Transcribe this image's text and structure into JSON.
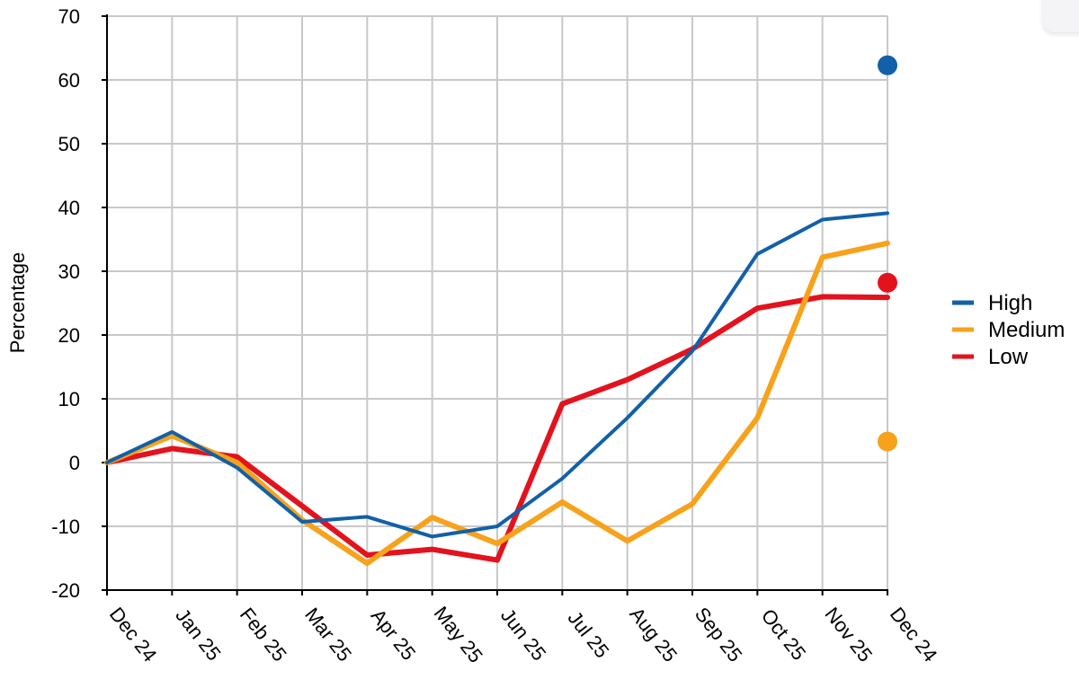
{
  "chart_data": {
    "type": "line",
    "title": "",
    "xlabel": "",
    "ylabel": "Percentage",
    "ylim": [
      -20,
      70
    ],
    "yticks": [
      -20,
      -10,
      0,
      10,
      20,
      30,
      40,
      50,
      60,
      70
    ],
    "categories": [
      "Dec 24",
      "Jan 25",
      "Feb 25",
      "Mar 25",
      "Apr 25",
      "May 25",
      "Jun 25",
      "Jul 25",
      "Aug 25",
      "Sep 25",
      "Oct 25",
      "Nov 25",
      "Dec 24"
    ],
    "grid": true,
    "legend_position": "right",
    "series": [
      {
        "name": "High",
        "color": "#1260a8",
        "values": [
          0,
          4.8,
          -0.8,
          -9.3,
          -8.5,
          -11.6,
          -10.0,
          -2.5,
          7.0,
          17.5,
          32.7,
          38.1,
          39.1
        ],
        "endpoint_marker": 62.3
      },
      {
        "name": "Medium",
        "color": "#f7a21b",
        "values": [
          0,
          4.2,
          0,
          -9.0,
          -15.8,
          -8.6,
          -12.7,
          -6.2,
          -12.3,
          -6.5,
          7.0,
          32.2,
          34.4
        ],
        "endpoint_marker": 3.3
      },
      {
        "name": "Low",
        "color": "#e3131e",
        "values": [
          0,
          2.2,
          0.9,
          -6.8,
          -14.5,
          -13.6,
          -15.3,
          9.2,
          13.0,
          17.8,
          24.2,
          26.0,
          25.9
        ],
        "endpoint_marker": 28.2
      }
    ]
  }
}
